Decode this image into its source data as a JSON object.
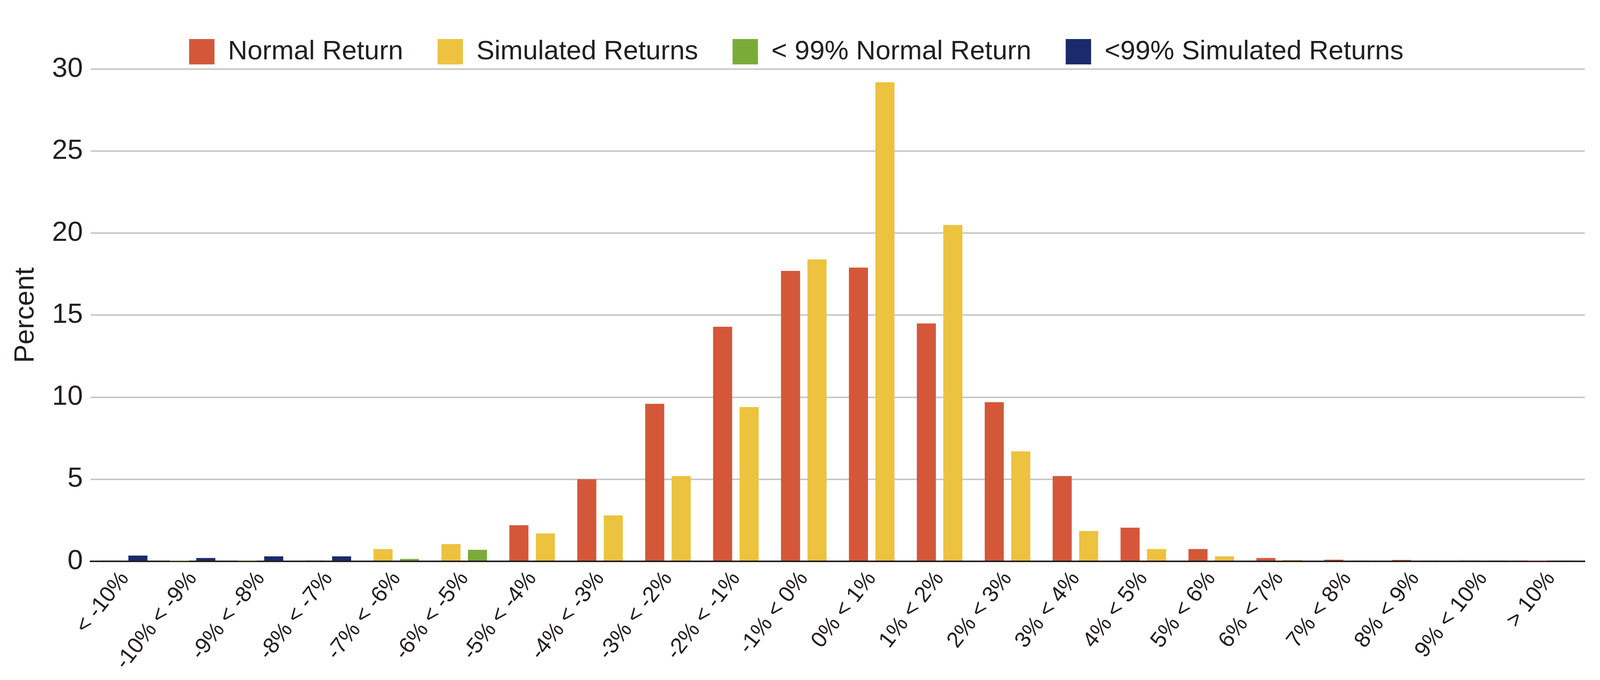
{
  "chart_data": {
    "type": "bar",
    "y_label": "Percent",
    "categories": [
      "< -10%",
      "-10% < -9%",
      "-9% < -8%",
      "-8% < -7%",
      "-7% < -6%",
      "-6% < -5%",
      "-5% < -4%",
      "-4% < -3%",
      "-3% < -2%",
      "-2% < -1%",
      "-1% < 0%",
      "0% < 1%",
      "1% < 2%",
      "2% < 3%",
      "3% < 4%",
      "4% < 5%",
      "5% < 6%",
      "6% < 7%",
      "7% < 8%",
      "8% < 9%",
      "9% < 10%",
      "> 10%"
    ],
    "series": [
      {
        "name": "Normal Return",
        "color": "#d4573a",
        "values": [
          null,
          null,
          null,
          null,
          null,
          null,
          2.2,
          5.0,
          9.6,
          14.3,
          17.7,
          17.9,
          14.5,
          9.7,
          5.2,
          2.05,
          0.75,
          0.2,
          0.1,
          0.08,
          0.05,
          0.03
        ]
      },
      {
        "name": "Simulated Returns",
        "color": "#ecc23f",
        "values": [
          null,
          null,
          null,
          null,
          0.75,
          1.05,
          1.7,
          2.8,
          5.2,
          9.4,
          18.4,
          29.2,
          20.5,
          6.7,
          1.85,
          0.75,
          0.3,
          0.08,
          0.05,
          0.05,
          0.05,
          0.05
        ]
      },
      {
        "name": "< 99% Normal Return",
        "color": "#7aab3a",
        "values": [
          0.05,
          0.02,
          0.03,
          0.05,
          0.15,
          0.7,
          null,
          null,
          null,
          null,
          null,
          null,
          null,
          null,
          null,
          null,
          null,
          null,
          null,
          null,
          null,
          null
        ]
      },
      {
        "name": "<99% Simulated Returns",
        "color": "#1b2a6b",
        "values": [
          0.35,
          0.2,
          0.3,
          0.3,
          null,
          null,
          null,
          null,
          null,
          null,
          null,
          null,
          null,
          null,
          null,
          null,
          null,
          null,
          null,
          null,
          null,
          null
        ]
      }
    ],
    "ylim": [
      0,
      30
    ],
    "yticks": [
      0,
      5,
      10,
      15,
      20,
      25,
      30
    ],
    "grid": true,
    "legend": "top"
  }
}
